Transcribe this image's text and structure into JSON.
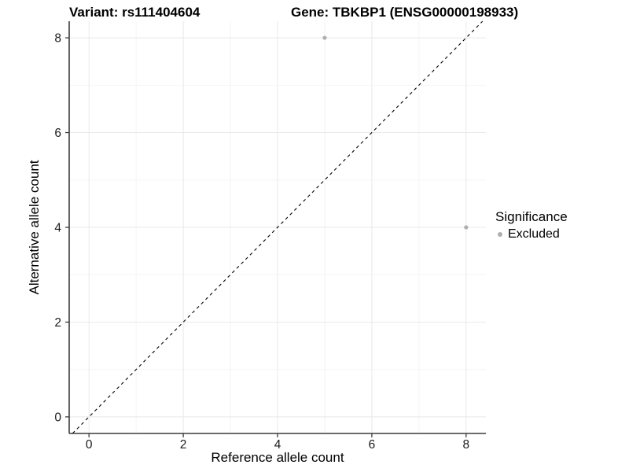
{
  "title": {
    "variant": "Variant: rs111404604",
    "gene": "Gene: TBKBP1 (ENSG00000198933)"
  },
  "legend": {
    "title": "Significance",
    "items": [
      {
        "label": "Excluded",
        "color": "#afafaf"
      }
    ]
  },
  "chart_data": {
    "type": "scatter",
    "title": "Variant: rs111404604   Gene: TBKBP1 (ENSG00000198933)",
    "xlabel": "Reference allele count",
    "ylabel": "Alternative allele count",
    "xlim": [
      -0.42,
      8.42
    ],
    "ylim": [
      -0.35,
      8.35
    ],
    "x_ticks": [
      0,
      2,
      4,
      6,
      8
    ],
    "y_ticks": [
      0,
      2,
      4,
      6,
      8
    ],
    "x_minor_ticks": [
      1,
      3,
      5,
      7
    ],
    "y_minor_ticks": [
      1,
      3,
      5,
      7
    ],
    "grid": "major and minor gridlines on white background",
    "series": [
      {
        "name": "Excluded",
        "color": "#afafaf",
        "points": [
          {
            "x": 5,
            "y": 8
          },
          {
            "x": 8,
            "y": 4
          }
        ]
      }
    ],
    "reference_line": {
      "kind": "identity y=x",
      "style": "dashed",
      "color": "#000000"
    },
    "legend_position": "right-center"
  },
  "colors": {
    "background": "#ffffff",
    "grid_major": "#e8e8e8",
    "grid_minor": "#f3f3f3",
    "axis": "#3c3c3c",
    "tick_text": "#1a1a1a",
    "point": "#afafaf"
  }
}
